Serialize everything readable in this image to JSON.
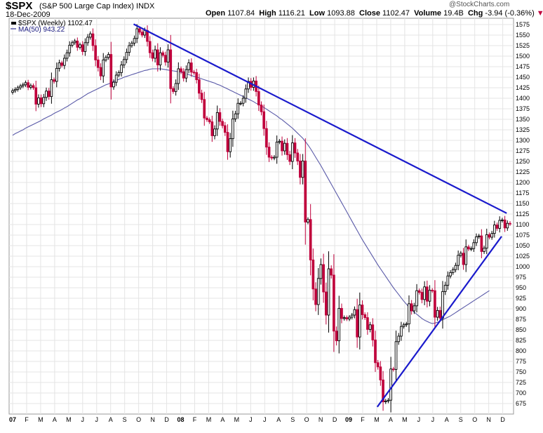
{
  "header": {
    "symbol": "$SPX",
    "name": "(S&P 500 Large Cap Index)",
    "exchange": "INDX",
    "date": "18-Dec-2009",
    "open_label": "Open",
    "open": "1107.84",
    "high_label": "High",
    "high": "1116.21",
    "low_label": "Low",
    "low": "1093.88",
    "close_label": "Close",
    "close": "1102.47",
    "volume_label": "Volume",
    "volume": "19.4B",
    "chg_label": "Chg",
    "chg": "-3.94 (-0.36%)",
    "watermark": "@StockCharts.com"
  },
  "legend": {
    "price": "$SPX (Weekly) 1102.47",
    "ma": "MA(50) 943.22"
  },
  "colors": {
    "up": "#000000",
    "down": "#c0003c",
    "ma_line": "#5a5aa8",
    "trendline": "#1a1acc",
    "grid": "#e4e4e4"
  },
  "chart_data": {
    "type": "candlestick",
    "interval": "weekly",
    "ylim": [
      650,
      1590
    ],
    "y_scale": "linear",
    "yticks": [
      675,
      700,
      725,
      750,
      775,
      800,
      825,
      850,
      875,
      900,
      925,
      950,
      975,
      1000,
      1025,
      1050,
      1075,
      1100,
      1125,
      1150,
      1175,
      1200,
      1225,
      1250,
      1275,
      1300,
      1325,
      1350,
      1375,
      1400,
      1425,
      1450,
      1475,
      1500,
      1525,
      1550,
      1575
    ],
    "xticks": [
      "07",
      "F",
      "M",
      "A",
      "M",
      "J",
      "J",
      "A",
      "S",
      "O",
      "N",
      "D",
      "08",
      "F",
      "M",
      "A",
      "M",
      "J",
      "J",
      "A",
      "S",
      "O",
      "N",
      "D",
      "09",
      "F",
      "M",
      "A",
      "M",
      "J",
      "J",
      "A",
      "S",
      "O",
      "N",
      "D"
    ],
    "grid": true,
    "legend_position": "top-left",
    "close": [
      1418,
      1421,
      1425,
      1429,
      1432,
      1437,
      1426,
      1430,
      1425,
      1386,
      1401,
      1387,
      1402,
      1417,
      1404,
      1444,
      1440,
      1471,
      1484,
      1478,
      1495,
      1508,
      1526,
      1532,
      1536,
      1521,
      1527,
      1511,
      1532,
      1545,
      1553,
      1525,
      1491,
      1473,
      1453,
      1491,
      1497,
      1504,
      1427,
      1438,
      1455,
      1461,
      1479,
      1492,
      1509,
      1525,
      1531,
      1542,
      1565,
      1557,
      1550,
      1561,
      1535,
      1508,
      1495,
      1515,
      1479,
      1508,
      1502,
      1486,
      1515,
      1423,
      1416,
      1435,
      1470,
      1463,
      1448,
      1468,
      1484,
      1462,
      1461,
      1444,
      1412,
      1397,
      1353,
      1349,
      1344,
      1311,
      1327,
      1366,
      1345,
      1335,
      1319,
      1273,
      1304,
      1351,
      1363,
      1388,
      1388,
      1400,
      1422,
      1440,
      1426,
      1441,
      1416,
      1384,
      1368,
      1328,
      1284,
      1260,
      1258,
      1260,
      1296,
      1298,
      1275,
      1293,
      1266,
      1250,
      1294,
      1270,
      1251,
      1212,
      1251,
      1106,
      1112,
      1016,
      947,
      910,
      972,
      1005,
      940,
      885,
      995,
      980,
      847,
      824,
      901,
      877,
      879,
      876,
      880,
      885,
      898,
      833,
      909,
      886,
      879,
      851,
      862,
      826,
      772,
      762,
      731,
      679,
      681,
      683,
      757,
      756,
      822,
      835,
      858,
      862,
      864,
      912,
      895,
      907,
      943,
      939,
      922,
      952,
      918,
      944,
      943,
      880,
      896,
      878,
      941,
      956,
      978,
      986,
      993,
      1003,
      1027,
      1032,
      1005,
      1047,
      1042,
      1043,
      1057,
      1071,
      1073,
      1036,
      1044,
      1076,
      1070,
      1079,
      1099,
      1091,
      1110,
      1111,
      1092,
      1103,
      1102
    ],
    "ma50": [
      1312,
      1316,
      1319,
      1322,
      1325,
      1329,
      1332,
      1335,
      1338,
      1341,
      1344,
      1347,
      1351,
      1354,
      1357,
      1360,
      1364,
      1367,
      1370,
      1373,
      1377,
      1380,
      1384,
      1388,
      1392,
      1396,
      1399,
      1403,
      1407,
      1411,
      1414,
      1417,
      1420,
      1423,
      1426,
      1429,
      1432,
      1434,
      1437,
      1440,
      1442,
      1445,
      1447,
      1450,
      1452,
      1454,
      1456,
      1458,
      1460,
      1462,
      1464,
      1466,
      1467,
      1469,
      1470,
      1470,
      1470,
      1470,
      1469,
      1468,
      1467,
      1466,
      1465,
      1464,
      1463,
      1462,
      1460,
      1458,
      1456,
      1454,
      1452,
      1450,
      1448,
      1446,
      1444,
      1442,
      1440,
      1438,
      1436,
      1433,
      1431,
      1428,
      1425,
      1422,
      1419,
      1416,
      1413,
      1410,
      1407,
      1404,
      1401,
      1398,
      1395,
      1392,
      1388,
      1385,
      1382,
      1378,
      1374,
      1370,
      1366,
      1362,
      1358,
      1353,
      1349,
      1344,
      1339,
      1334,
      1329,
      1323,
      1317,
      1311,
      1305,
      1297,
      1289,
      1280,
      1270,
      1260,
      1250,
      1240,
      1229,
      1218,
      1207,
      1196,
      1185,
      1174,
      1163,
      1152,
      1141,
      1130,
      1119,
      1108,
      1097,
      1086,
      1075,
      1064,
      1054,
      1044,
      1034,
      1024,
      1014,
      1004,
      995,
      986,
      977,
      968,
      959,
      950,
      942,
      934,
      926,
      918,
      911,
      904,
      898,
      892,
      887,
      882,
      877,
      873,
      870,
      867,
      865,
      866,
      868,
      871,
      874,
      877,
      880,
      883,
      887,
      891,
      895,
      899,
      903,
      907,
      911,
      915,
      919,
      923,
      927,
      931,
      935,
      939,
      943
    ],
    "trendlines": [
      {
        "from": [
          2007.72,
          1576
        ],
        "to": [
          2009.94,
          1127
        ]
      },
      {
        "from": [
          2009.17,
          667
        ],
        "to": [
          2009.91,
          1072
        ]
      }
    ]
  }
}
